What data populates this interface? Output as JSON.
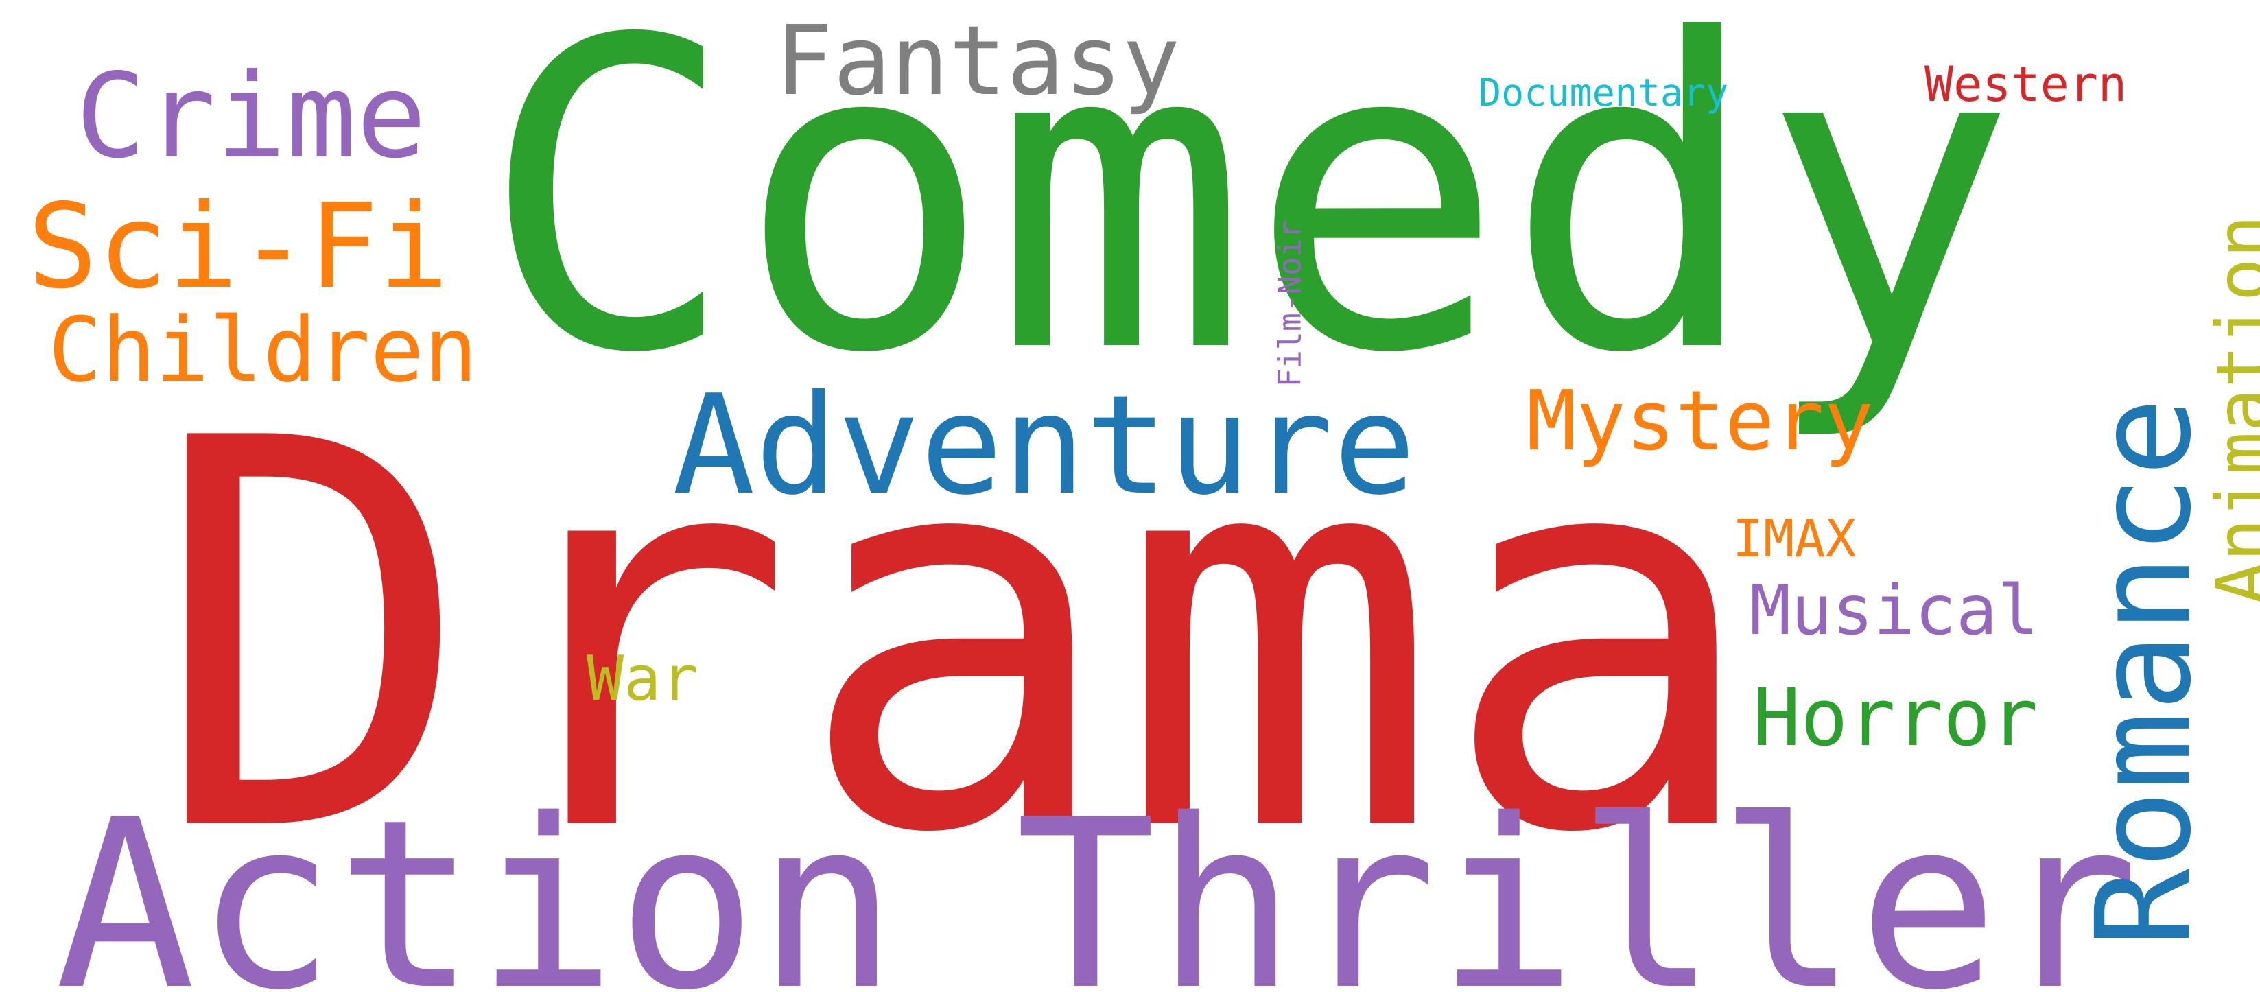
{
  "words": {
    "drama": {
      "text": "Drama",
      "color": "#d62728"
    },
    "comedy": {
      "text": "Comedy",
      "color": "#2ca02c"
    },
    "action": {
      "text": "Action",
      "color": "#9467bd"
    },
    "thriller": {
      "text": "Thriller",
      "color": "#9467bd"
    },
    "adventure": {
      "text": "Adventure",
      "color": "#1f77b4"
    },
    "fantasy": {
      "text": "Fantasy",
      "color": "#7f7f7f"
    },
    "crime": {
      "text": "Crime",
      "color": "#9467bd"
    },
    "scifi": {
      "text": "Sci-Fi",
      "color": "#ff7f0e"
    },
    "children": {
      "text": "Children",
      "color": "#ff7f0e"
    },
    "mystery": {
      "text": "Mystery",
      "color": "#ff7f0e"
    },
    "documentary": {
      "text": "Documentary",
      "color": "#17becf"
    },
    "western": {
      "text": "Western",
      "color": "#d62728"
    },
    "imax": {
      "text": "IMAX",
      "color": "#ff7f0e"
    },
    "musical": {
      "text": "Musical",
      "color": "#9467bd"
    },
    "horror": {
      "text": "Horror",
      "color": "#2ca02c"
    },
    "war": {
      "text": "War",
      "color": "#bcbd22"
    },
    "romance": {
      "text": "Romance",
      "color": "#1f77b4"
    },
    "animation": {
      "text": "Animation",
      "color": "#bcbd22"
    },
    "filmnoir": {
      "text": "Film-Noir",
      "color": "#9467bd"
    }
  }
}
